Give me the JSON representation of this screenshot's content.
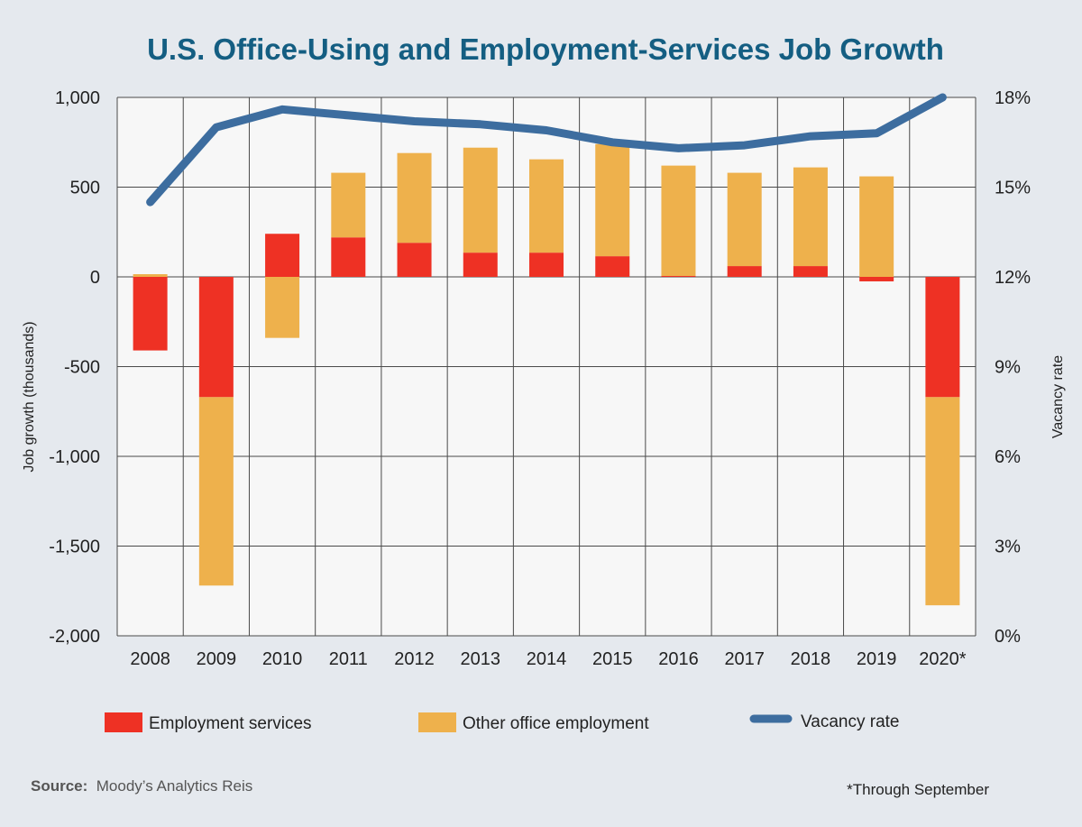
{
  "chart_data": {
    "type": "bar",
    "title": "U.S. Office-Using and Employment-Services Job Growth",
    "categories": [
      "2008",
      "2009",
      "2010",
      "2011",
      "2012",
      "2013",
      "2014",
      "2015",
      "2016",
      "2017",
      "2018",
      "2019",
      "2020*"
    ],
    "series": [
      {
        "name": "Employment services",
        "kind": "stacked-bar",
        "axis": "left",
        "values": [
          -410,
          -670,
          240,
          220,
          190,
          135,
          135,
          115,
          5,
          60,
          60,
          -25,
          -670
        ]
      },
      {
        "name": "Other office employment",
        "kind": "stacked-bar",
        "axis": "left",
        "values": [
          15,
          -1050,
          -340,
          360,
          500,
          585,
          520,
          625,
          615,
          520,
          550,
          560,
          -1160
        ]
      },
      {
        "name": "Vacancy rate",
        "kind": "line",
        "axis": "right",
        "values": [
          14.5,
          17.0,
          17.6,
          17.4,
          17.2,
          17.1,
          16.9,
          16.5,
          16.3,
          16.4,
          16.7,
          16.8,
          18.0
        ]
      }
    ],
    "ylabel": "Job growth (thousands)",
    "ylim": [
      -2000,
      1000
    ],
    "yticks": [
      "1,000",
      "500",
      "0",
      "-500",
      "-1,000",
      "-1,500",
      "-2,000"
    ],
    "y2label": "Vacancy rate",
    "y2lim": [
      0,
      18
    ],
    "y2ticks": [
      "18%",
      "15%",
      "12%",
      "9%",
      "6%",
      "3%",
      "0%"
    ],
    "grid": true,
    "legend_position": "bottom",
    "colors": {
      "Employment services": "#ee3124",
      "Other office employment": "#eeb14c",
      "Vacancy rate": "#3d6d9f",
      "title": "#145e82",
      "plot_bg": "#f7f7f7",
      "page_bg": "#e5e9ee"
    }
  },
  "source": {
    "label": "Source:",
    "text": "Moody’s Analytics Reis"
  },
  "footnote": "*Through September"
}
